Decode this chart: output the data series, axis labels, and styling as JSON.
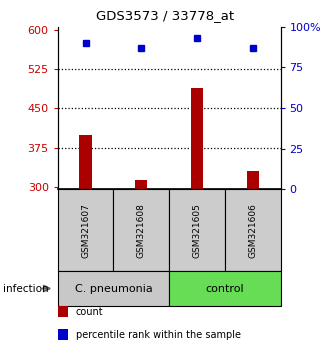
{
  "title": "GDS3573 / 33778_at",
  "samples": [
    "GSM321607",
    "GSM321608",
    "GSM321605",
    "GSM321606"
  ],
  "counts": [
    400,
    313,
    490,
    330
  ],
  "percentiles": [
    90,
    87,
    93,
    87
  ],
  "ylim_left": [
    295,
    607
  ],
  "ylim_right": [
    0,
    100
  ],
  "yticks_left": [
    300,
    375,
    450,
    525,
    600
  ],
  "ytick_right_vals": [
    0,
    25,
    50,
    75,
    100
  ],
  "ytick_right_labels": [
    "0",
    "25",
    "50",
    "75",
    "100%"
  ],
  "dotted_lines": [
    375,
    450,
    525
  ],
  "bar_color": "#aa0000",
  "dot_color": "#0000cc",
  "groups": [
    {
      "label": "C. pneumonia",
      "indices": [
        0,
        1
      ],
      "color": "#c8c8c8"
    },
    {
      "label": "control",
      "indices": [
        2,
        3
      ],
      "color": "#66dd55"
    }
  ],
  "infection_label": "infection",
  "legend_items": [
    {
      "color": "#aa0000",
      "label": "count"
    },
    {
      "color": "#0000cc",
      "label": "percentile rank within the sample"
    }
  ],
  "left_axis_color": "#cc0000",
  "right_axis_color": "#0000cc",
  "bar_bottom": 295
}
